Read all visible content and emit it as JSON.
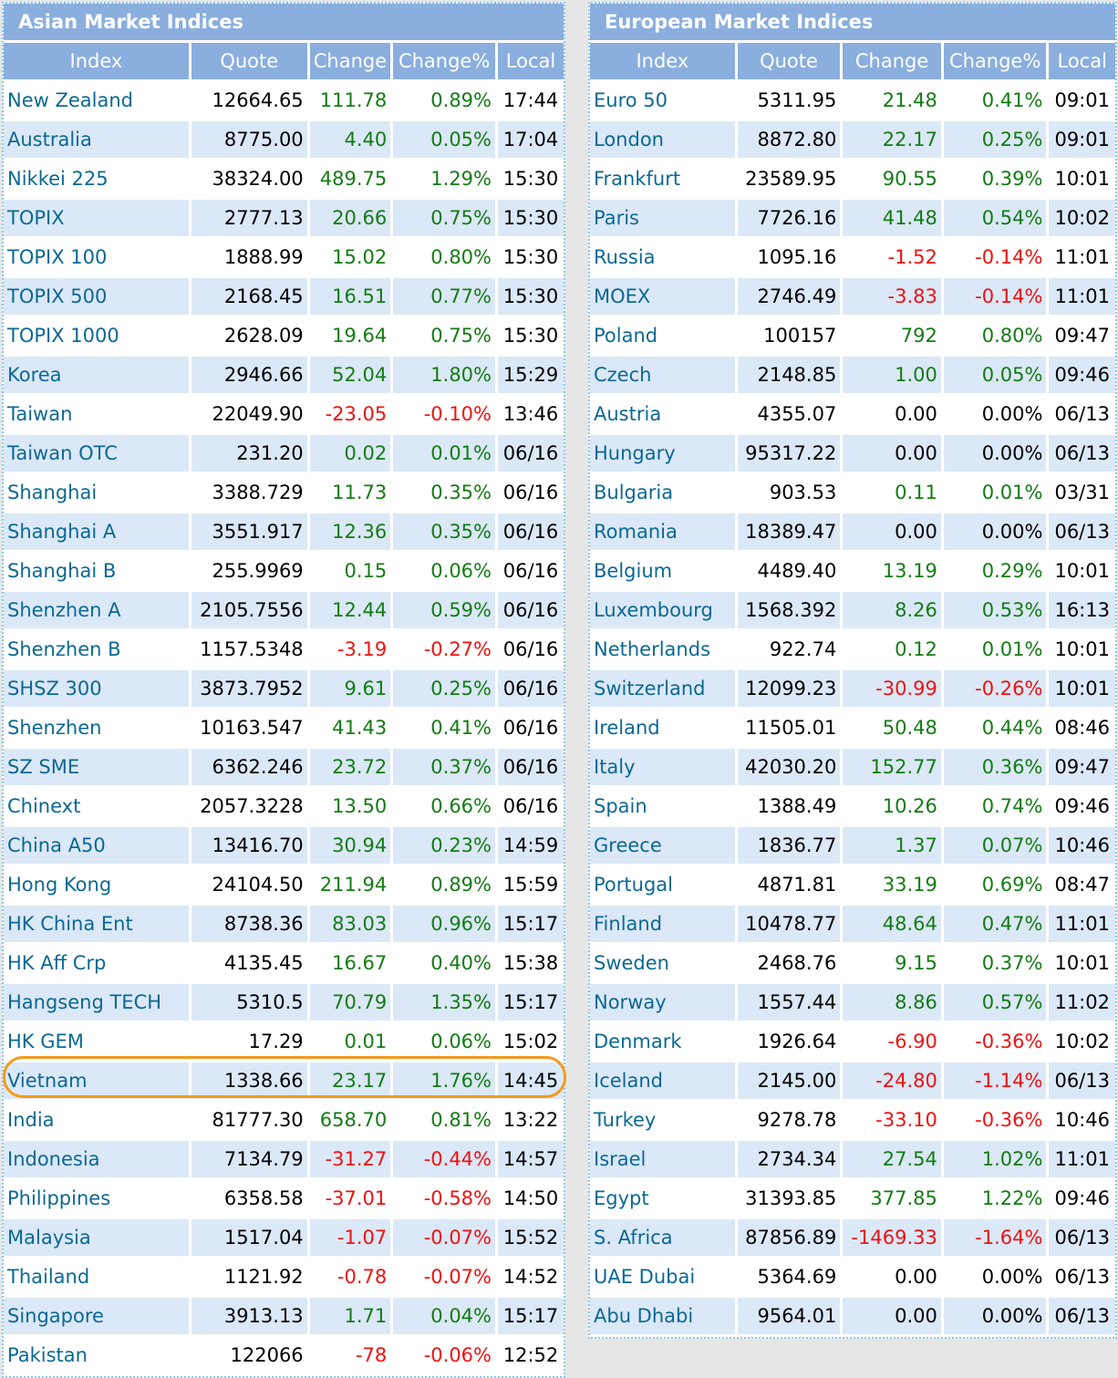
{
  "asian": {
    "title": "Asian Market Indices",
    "headers": [
      "Index",
      "Quote",
      "Change",
      "Change%",
      "Local"
    ],
    "highlighted": "Vietnam",
    "rows": [
      [
        "New Zealand",
        "12664.65",
        "111.78",
        "0.89%",
        "17:44"
      ],
      [
        "Australia",
        "8775.00",
        "4.40",
        "0.05%",
        "17:04"
      ],
      [
        "Nikkei 225",
        "38324.00",
        "489.75",
        "1.29%",
        "15:30"
      ],
      [
        "TOPIX",
        "2777.13",
        "20.66",
        "0.75%",
        "15:30"
      ],
      [
        "TOPIX 100",
        "1888.99",
        "15.02",
        "0.80%",
        "15:30"
      ],
      [
        "TOPIX 500",
        "2168.45",
        "16.51",
        "0.77%",
        "15:30"
      ],
      [
        "TOPIX 1000",
        "2628.09",
        "19.64",
        "0.75%",
        "15:30"
      ],
      [
        "Korea",
        "2946.66",
        "52.04",
        "1.80%",
        "15:29"
      ],
      [
        "Taiwan",
        "22049.90",
        "-23.05",
        "-0.10%",
        "13:46"
      ],
      [
        "Taiwan OTC",
        "231.20",
        "0.02",
        "0.01%",
        "06/16"
      ],
      [
        "Shanghai",
        "3388.729",
        "11.73",
        "0.35%",
        "06/16"
      ],
      [
        "Shanghai A",
        "3551.917",
        "12.36",
        "0.35%",
        "06/16"
      ],
      [
        "Shanghai B",
        "255.9969",
        "0.15",
        "0.06%",
        "06/16"
      ],
      [
        "Shenzhen A",
        "2105.7556",
        "12.44",
        "0.59%",
        "06/16"
      ],
      [
        "Shenzhen B",
        "1157.5348",
        "-3.19",
        "-0.27%",
        "06/16"
      ],
      [
        "SHSZ 300",
        "3873.7952",
        "9.61",
        "0.25%",
        "06/16"
      ],
      [
        "Shenzhen",
        "10163.547",
        "41.43",
        "0.41%",
        "06/16"
      ],
      [
        "SZ SME",
        "6362.246",
        "23.72",
        "0.37%",
        "06/16"
      ],
      [
        "Chinext",
        "2057.3228",
        "13.50",
        "0.66%",
        "06/16"
      ],
      [
        "China A50",
        "13416.70",
        "30.94",
        "0.23%",
        "14:59"
      ],
      [
        "Hong Kong",
        "24104.50",
        "211.94",
        "0.89%",
        "15:59"
      ],
      [
        "HK China Ent",
        "8738.36",
        "83.03",
        "0.96%",
        "15:17"
      ],
      [
        "HK Aff Crp",
        "4135.45",
        "16.67",
        "0.40%",
        "15:38"
      ],
      [
        "Hangseng TECH",
        "5310.5",
        "70.79",
        "1.35%",
        "15:17"
      ],
      [
        "HK GEM",
        "17.29",
        "0.01",
        "0.06%",
        "15:02"
      ],
      [
        "Vietnam",
        "1338.66",
        "23.17",
        "1.76%",
        "14:45"
      ],
      [
        "India",
        "81777.30",
        "658.70",
        "0.81%",
        "13:22"
      ],
      [
        "Indonesia",
        "7134.79",
        "-31.27",
        "-0.44%",
        "14:57"
      ],
      [
        "Philippines",
        "6358.58",
        "-37.01",
        "-0.58%",
        "14:50"
      ],
      [
        "Malaysia",
        "1517.04",
        "-1.07",
        "-0.07%",
        "15:52"
      ],
      [
        "Thailand",
        "1121.92",
        "-0.78",
        "-0.07%",
        "14:52"
      ],
      [
        "Singapore",
        "3913.13",
        "1.71",
        "0.04%",
        "15:17"
      ],
      [
        "Pakistan",
        "122066",
        "-78",
        "-0.06%",
        "12:52"
      ]
    ]
  },
  "european": {
    "title": "European Market Indices",
    "headers": [
      "Index",
      "Quote",
      "Change",
      "Change%",
      "Local"
    ],
    "rows": [
      [
        "Euro 50",
        "5311.95",
        "21.48",
        "0.41%",
        "09:01"
      ],
      [
        "London",
        "8872.80",
        "22.17",
        "0.25%",
        "09:01"
      ],
      [
        "Frankfurt",
        "23589.95",
        "90.55",
        "0.39%",
        "10:01"
      ],
      [
        "Paris",
        "7726.16",
        "41.48",
        "0.54%",
        "10:02"
      ],
      [
        "Russia",
        "1095.16",
        "-1.52",
        "-0.14%",
        "11:01"
      ],
      [
        "MOEX",
        "2746.49",
        "-3.83",
        "-0.14%",
        "11:01"
      ],
      [
        "Poland",
        "100157",
        "792",
        "0.80%",
        "09:47"
      ],
      [
        "Czech",
        "2148.85",
        "1.00",
        "0.05%",
        "09:46"
      ],
      [
        "Austria",
        "4355.07",
        "0.00",
        "0.00%",
        "06/13"
      ],
      [
        "Hungary",
        "95317.22",
        "0.00",
        "0.00%",
        "06/13"
      ],
      [
        "Bulgaria",
        "903.53",
        "0.11",
        "0.01%",
        "03/31"
      ],
      [
        "Romania",
        "18389.47",
        "0.00",
        "0.00%",
        "06/13"
      ],
      [
        "Belgium",
        "4489.40",
        "13.19",
        "0.29%",
        "10:01"
      ],
      [
        "Luxembourg",
        "1568.392",
        "8.26",
        "0.53%",
        "16:13"
      ],
      [
        "Netherlands",
        "922.74",
        "0.12",
        "0.01%",
        "10:01"
      ],
      [
        "Switzerland",
        "12099.23",
        "-30.99",
        "-0.26%",
        "10:01"
      ],
      [
        "Ireland",
        "11505.01",
        "50.48",
        "0.44%",
        "08:46"
      ],
      [
        "Italy",
        "42030.20",
        "152.77",
        "0.36%",
        "09:47"
      ],
      [
        "Spain",
        "1388.49",
        "10.26",
        "0.74%",
        "09:46"
      ],
      [
        "Greece",
        "1836.77",
        "1.37",
        "0.07%",
        "10:46"
      ],
      [
        "Portugal",
        "4871.81",
        "33.19",
        "0.69%",
        "08:47"
      ],
      [
        "Finland",
        "10478.77",
        "48.64",
        "0.47%",
        "11:01"
      ],
      [
        "Sweden",
        "2468.76",
        "9.15",
        "0.37%",
        "10:01"
      ],
      [
        "Norway",
        "1557.44",
        "8.86",
        "0.57%",
        "11:02"
      ],
      [
        "Denmark",
        "1926.64",
        "-6.90",
        "-0.36%",
        "10:02"
      ],
      [
        "Iceland",
        "2145.00",
        "-24.80",
        "-1.14%",
        "06/13"
      ],
      [
        "Turkey",
        "9278.78",
        "-33.10",
        "-0.36%",
        "10:46"
      ],
      [
        "Israel",
        "2734.34",
        "27.54",
        "1.02%",
        "11:01"
      ],
      [
        "Egypt",
        "31393.85",
        "377.85",
        "1.22%",
        "09:46"
      ],
      [
        "S. Africa",
        "87856.89",
        "-1469.33",
        "-1.64%",
        "06/13"
      ],
      [
        "UAE Dubai",
        "5364.69",
        "0.00",
        "0.00%",
        "06/13"
      ],
      [
        "Abu Dhabi",
        "9564.01",
        "0.00",
        "0.00%",
        "06/13"
      ]
    ]
  },
  "colors": {
    "header_bg": "#8aaede",
    "alt_row_bg": "#dbe8f7",
    "name_text": "#0b6894",
    "positive": "#137b13",
    "negative": "#ee1111",
    "highlight_ring": "#f59a1a"
  }
}
